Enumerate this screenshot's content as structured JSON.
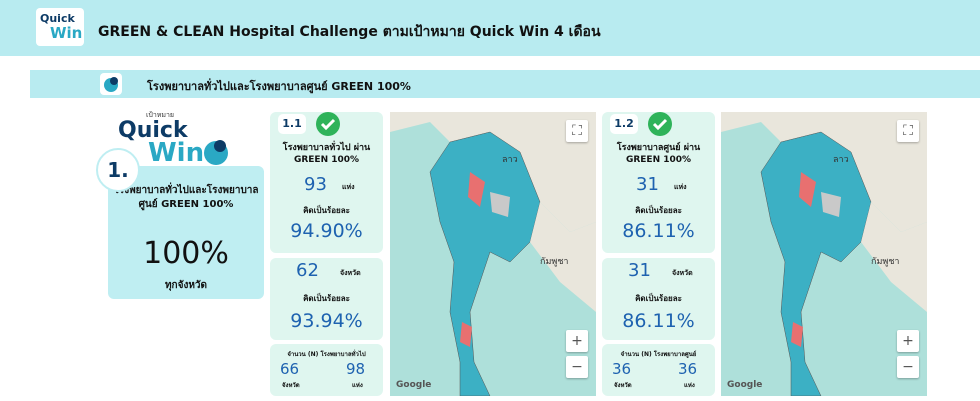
{
  "header": {
    "logo_top": "Quick",
    "logo_bottom": "Win",
    "title": "GREEN & CLEAN Hospital Challenge ตามเป้าหมาย Quick Win 4 เดือน"
  },
  "section": {
    "title": "โรงพยาบาลทั่วไปและโรงพยาบาลศูนย์ GREEN 100%"
  },
  "goal": {
    "target_label": "เป้าหมาย",
    "logo_top": "Quick",
    "logo_bottom": "Win",
    "number": "1.",
    "text": "โรงพยาบาลทั่วไปและโรงพยาบาลศูนย์ GREEN 100%",
    "value": "100%",
    "subtext": "ทุกจังหวัด"
  },
  "panels": [
    {
      "number": "1.1",
      "title": "โรงพยาบาลทั่วไป ผ่าน GREEN 100%",
      "hospitals": {
        "count": "93",
        "unit": "แห่ง",
        "label": "คิดเป็นร้อยละ",
        "percent": "94.90%"
      },
      "provinces": {
        "count": "62",
        "unit": "จังหวัด",
        "label": "คิดเป็นร้อยละ",
        "percent": "93.94%"
      },
      "totals": {
        "title": "จำนวน (N) โรงพยาบาลทั่วไป",
        "provinces": "66",
        "provinces_unit": "จังหวัด",
        "hospitals": "98",
        "hospitals_unit": "แห่ง"
      }
    },
    {
      "number": "1.2",
      "title": "โรงพยาบาลศูนย์ ผ่าน GREEN 100%",
      "hospitals": {
        "count": "31",
        "unit": "แห่ง",
        "label": "คิดเป็นร้อยละ",
        "percent": "86.11%"
      },
      "provinces": {
        "count": "31",
        "unit": "จังหวัด",
        "label": "คิดเป็นร้อยละ",
        "percent": "86.11%"
      },
      "totals": {
        "title": "จำนวน (N) โรงพยาบาลศูนย์",
        "provinces": "36",
        "provinces_unit": "จังหวัด",
        "hospitals": "36",
        "hospitals_unit": "แห่ง"
      }
    }
  ],
  "maps": [
    {
      "labels": [
        "ลาว",
        "กัมพูชา"
      ],
      "attribution": "Google"
    },
    {
      "labels": [
        "ลาว",
        "กัมพูชา"
      ],
      "attribution": "Google"
    }
  ]
}
